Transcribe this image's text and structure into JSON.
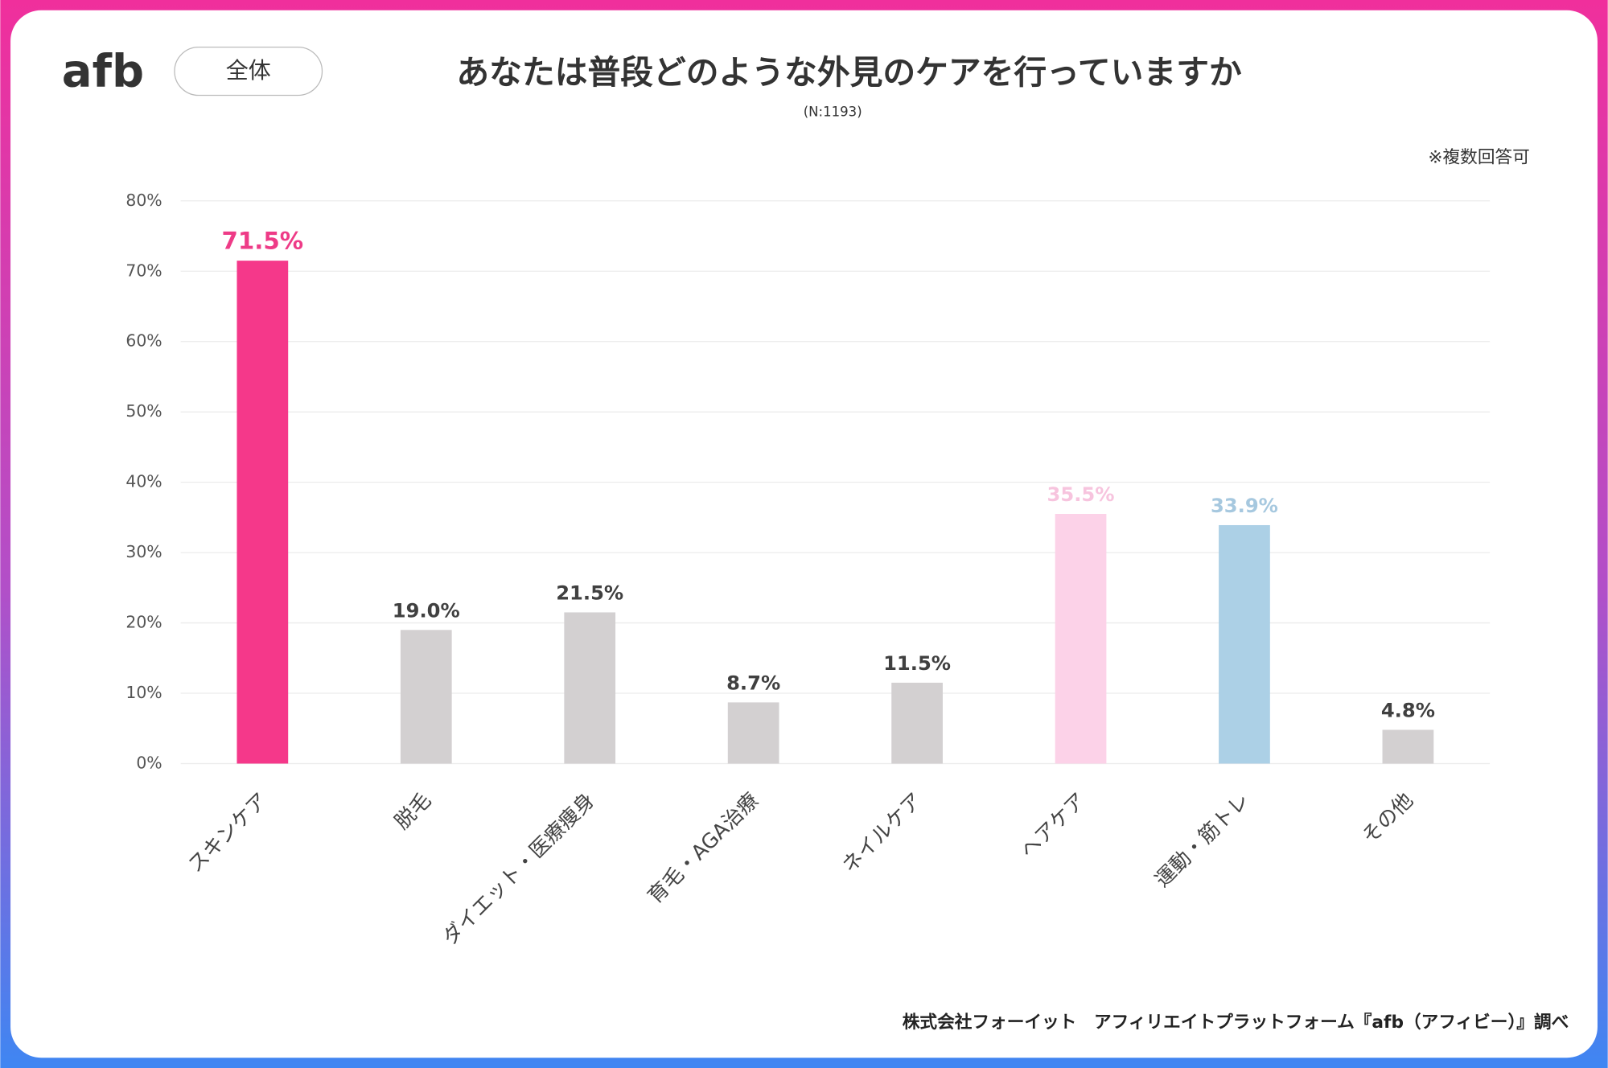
{
  "header": {
    "logo": "afb",
    "badge": "全体"
  },
  "chart_data": {
    "type": "bar",
    "title": "あなたは普段どのような外見のケアを行っていますか",
    "subtitle": "(N:1193)",
    "note": "※複数回答可",
    "source": "株式会社フォーイット　アフィリエイトプラットフォーム『afb（アフィビー）』調べ",
    "categories": [
      "スキンケア",
      "脱毛",
      "ダイエット・医療痩身",
      "育毛・AGA治療",
      "ネイルケア",
      "ヘアケア",
      "運動・筋トレ",
      "その他"
    ],
    "values": [
      71.5,
      19.0,
      21.5,
      8.7,
      11.5,
      35.5,
      33.9,
      4.8
    ],
    "value_labels": [
      "71.5%",
      "19.0%",
      "21.5%",
      "8.7%",
      "11.5%",
      "35.5%",
      "33.9%",
      "4.8%"
    ],
    "colors": [
      "#f5388a",
      "#d3d0d1",
      "#d3d0d1",
      "#d3d0d1",
      "#d3d0d1",
      "#fcd2e8",
      "#acd0e6",
      "#d3d0d1"
    ],
    "label_colors": [
      "#ee3b87",
      "#404040",
      "#404040",
      "#404040",
      "#404040",
      "#f7c4de",
      "#a6c8df",
      "#404040"
    ],
    "ylim": [
      0,
      80
    ],
    "yticks": [
      {
        "value": 0,
        "label": "0%"
      },
      {
        "value": 10,
        "label": "10%"
      },
      {
        "value": 20,
        "label": "20%"
      },
      {
        "value": 30,
        "label": "30%"
      },
      {
        "value": 40,
        "label": "40%"
      },
      {
        "value": 50,
        "label": "50%"
      },
      {
        "value": 60,
        "label": "60%"
      },
      {
        "value": 70,
        "label": "70%"
      },
      {
        "value": 80,
        "label": "80%"
      }
    ],
    "grid": true
  }
}
